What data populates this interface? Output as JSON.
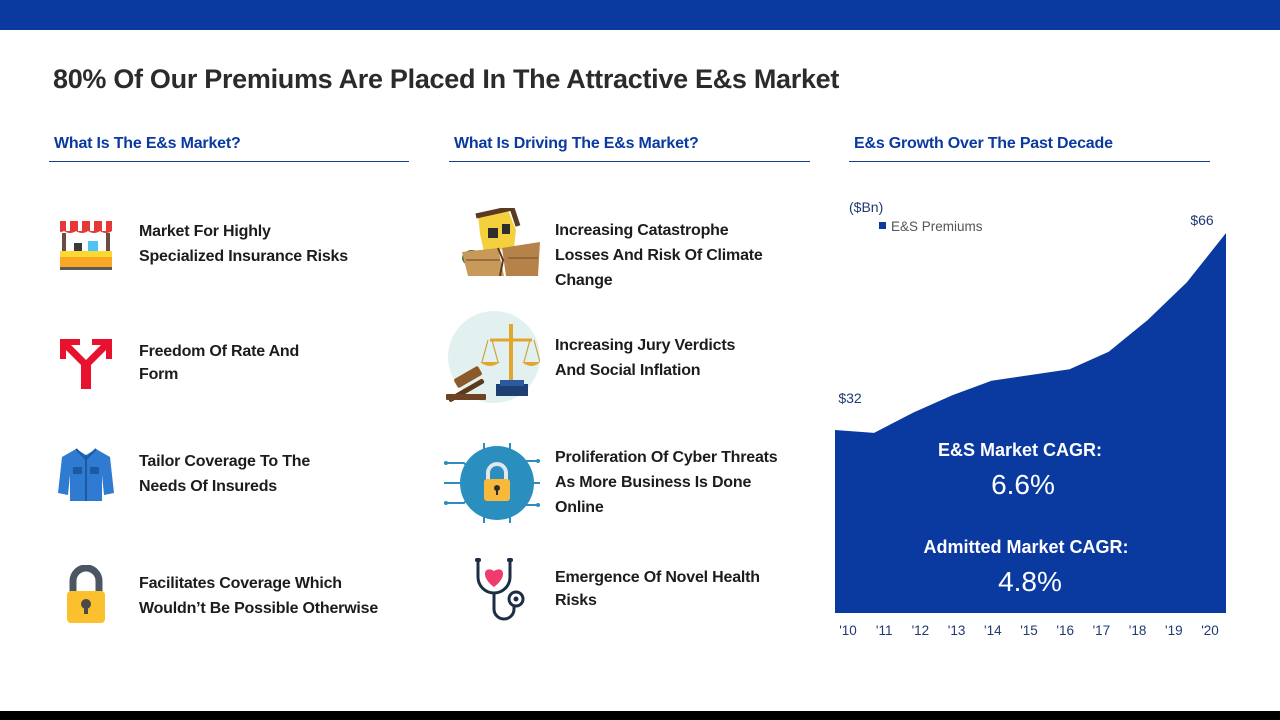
{
  "title": "80% Of Our Premiums Are Placed In The Attractive E&s Market",
  "columns": {
    "what": {
      "heading": "What Is The E&s Market?",
      "items": [
        {
          "icon": "market-stall-icon",
          "text": "Market For Highly\nSpecialized  Insurance Risks"
        },
        {
          "icon": "forked-arrow-icon",
          "text": "Freedom Of Rate And\nForm"
        },
        {
          "icon": "tailored-shirt-icon",
          "text": "Tailor Coverage To The\nNeeds  Of Insureds"
        },
        {
          "icon": "padlock-icon",
          "text": "Facilitates Coverage Which\nWouldn’t Be Possible Otherwise"
        }
      ]
    },
    "driving": {
      "heading": "What Is Driving The E&s Market?",
      "items": [
        {
          "icon": "earthquake-house-icon",
          "text": "Increasing Catastrophe\nLosses  And Risk Of Climate\nChange"
        },
        {
          "icon": "scales-of-justice-icon",
          "text": "Increasing Jury Verdicts\nAnd  Social Inflation"
        },
        {
          "icon": "cyber-lock-icon",
          "text": "Proliferation Of Cyber Threats\nAs  More Business Is Done\nOnline"
        },
        {
          "icon": "stethoscope-icon",
          "text": "Emergence Of Novel Health\nRisks"
        }
      ]
    },
    "growth": {
      "heading": "E&s Growth Over The Past Decade"
    }
  },
  "cagr": {
    "es_label": "E&S Market CAGR:",
    "es_value": "6.6%",
    "admitted_label": "Admitted Market CAGR:",
    "admitted_value": "4.8%"
  },
  "chart_data": {
    "type": "area",
    "unit_label": "($Bn)",
    "legend": "E&S Premiums",
    "legend_position": "top-left",
    "color": "#0a3aa0",
    "categories": [
      "'10",
      "'11",
      "'12",
      "'13",
      "'14",
      "'15",
      "'16",
      "'17",
      "'18",
      "'19",
      "'20"
    ],
    "series": [
      {
        "name": "E&S Premiums",
        "values": [
          32,
          31.5,
          35,
          38,
          40.5,
          41.5,
          42.5,
          45.5,
          51,
          57.5,
          66
        ]
      }
    ],
    "data_labels": {
      "first": "$32",
      "last": "$66"
    },
    "ylim": [
      0,
      70
    ],
    "grid": false
  }
}
